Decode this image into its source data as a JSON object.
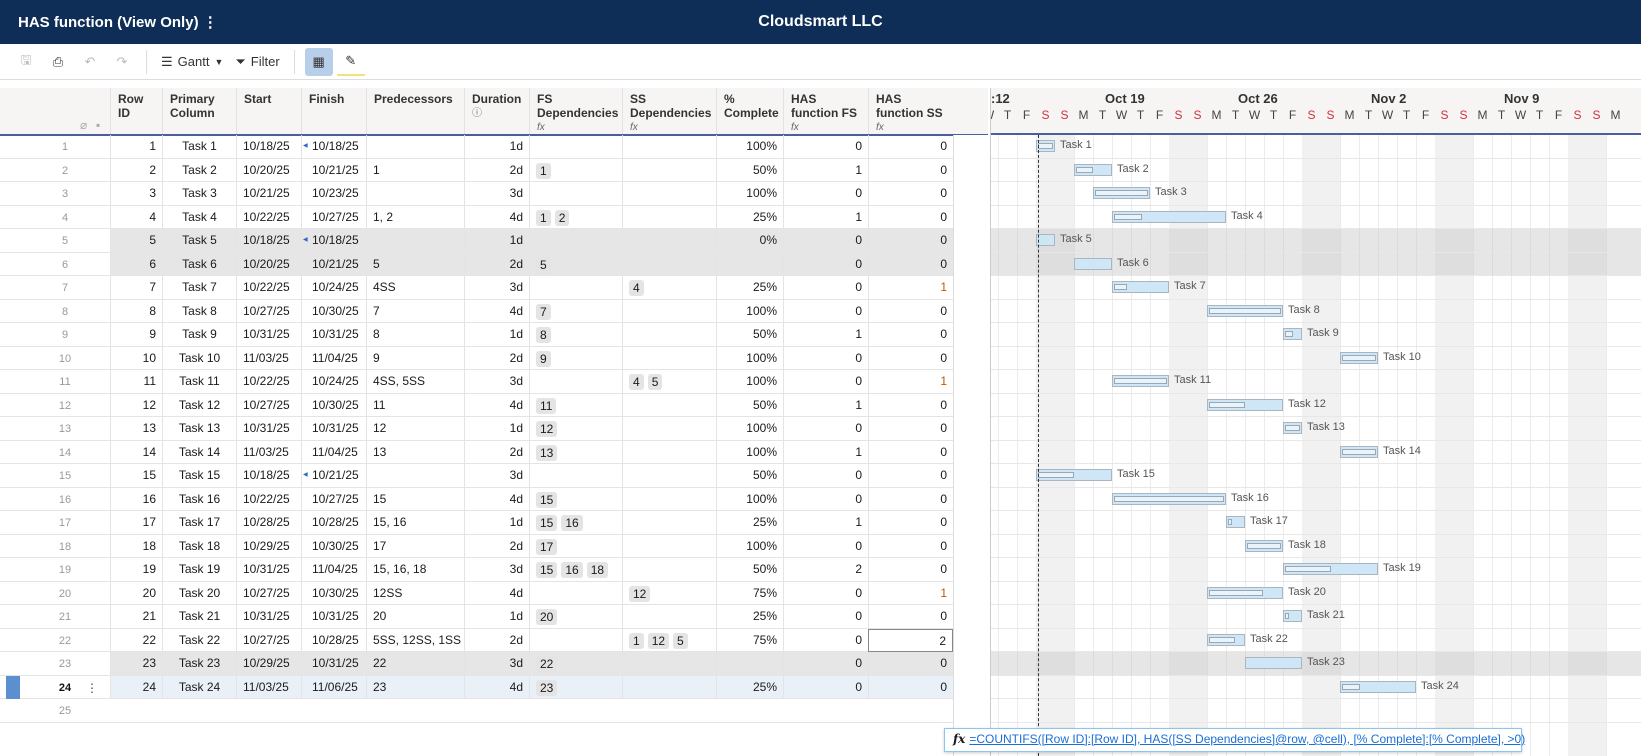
{
  "header": {
    "title": "HAS function (View Only) ⋮",
    "company": "Cloudsmart LLC"
  },
  "toolbar": {
    "view_label": "Gantt",
    "filter_label": "Filter",
    "icons": [
      "save-icon",
      "print-icon",
      "undo-icon",
      "redo-icon",
      "gantt-icon",
      "filter-icon",
      "grid-view-icon",
      "highlight-icon"
    ]
  },
  "columns": [
    "Row ID",
    "Primary Column",
    "Start",
    "Finish",
    "Predecessors",
    "Duration",
    "FS Dependencies",
    "SS Dependencies",
    "% Complete",
    "HAS function FS",
    "HAS function SS"
  ],
  "formula_icon": "fx",
  "rows": [
    {
      "n": "1",
      "id": "1",
      "name": "Task 1",
      "start": "10/18/25",
      "finish": "10/18/25",
      "pred": "",
      "dur": "1d",
      "fs": [],
      "ss": [],
      "pct": "100%",
      "hfs": "0",
      "hss": "0",
      "marker": true
    },
    {
      "n": "2",
      "id": "2",
      "name": "Task 2",
      "start": "10/20/25",
      "finish": "10/21/25",
      "pred": "1",
      "dur": "2d",
      "fs": [
        "1"
      ],
      "ss": [],
      "pct": "50%",
      "hfs": "1",
      "hss": "0"
    },
    {
      "n": "3",
      "id": "3",
      "name": "Task 3",
      "start": "10/21/25",
      "finish": "10/23/25",
      "pred": "",
      "dur": "3d",
      "fs": [],
      "ss": [],
      "pct": "100%",
      "hfs": "0",
      "hss": "0"
    },
    {
      "n": "4",
      "id": "4",
      "name": "Task 4",
      "start": "10/22/25",
      "finish": "10/27/25",
      "pred": "1, 2",
      "dur": "4d",
      "fs": [
        "1",
        "2"
      ],
      "ss": [],
      "pct": "25%",
      "hfs": "1",
      "hss": "0"
    },
    {
      "n": "5",
      "id": "5",
      "name": "Task 5",
      "start": "10/18/25",
      "finish": "10/18/25",
      "pred": "",
      "dur": "1d",
      "fs": [],
      "ss": [],
      "pct": "0%",
      "hfs": "0",
      "hss": "0",
      "gray": true,
      "marker": true
    },
    {
      "n": "6",
      "id": "6",
      "name": "Task 6",
      "start": "10/20/25",
      "finish": "10/21/25",
      "pred": "5",
      "dur": "2d",
      "fs": [
        "5"
      ],
      "ss": [],
      "pct": "",
      "hfs": "0",
      "hss": "0",
      "gray": true
    },
    {
      "n": "7",
      "id": "7",
      "name": "Task 7",
      "start": "10/22/25",
      "finish": "10/24/25",
      "pred": "4SS",
      "dur": "3d",
      "fs": [],
      "ss": [
        "4"
      ],
      "pct": "25%",
      "hfs": "0",
      "hss": "1"
    },
    {
      "n": "8",
      "id": "8",
      "name": "Task 8",
      "start": "10/27/25",
      "finish": "10/30/25",
      "pred": "7",
      "dur": "4d",
      "fs": [
        "7"
      ],
      "ss": [],
      "pct": "100%",
      "hfs": "0",
      "hss": "0"
    },
    {
      "n": "9",
      "id": "9",
      "name": "Task 9",
      "start": "10/31/25",
      "finish": "10/31/25",
      "pred": "8",
      "dur": "1d",
      "fs": [
        "8"
      ],
      "ss": [],
      "pct": "50%",
      "hfs": "1",
      "hss": "0"
    },
    {
      "n": "10",
      "id": "10",
      "name": "Task 10",
      "start": "11/03/25",
      "finish": "11/04/25",
      "pred": "9",
      "dur": "2d",
      "fs": [
        "9"
      ],
      "ss": [],
      "pct": "100%",
      "hfs": "0",
      "hss": "0"
    },
    {
      "n": "11",
      "id": "11",
      "name": "Task 11",
      "start": "10/22/25",
      "finish": "10/24/25",
      "pred": "4SS, 5SS",
      "dur": "3d",
      "fs": [],
      "ss": [
        "4",
        "5"
      ],
      "pct": "100%",
      "hfs": "0",
      "hss": "1"
    },
    {
      "n": "12",
      "id": "12",
      "name": "Task 12",
      "start": "10/27/25",
      "finish": "10/30/25",
      "pred": "11",
      "dur": "4d",
      "fs": [
        "11"
      ],
      "ss": [],
      "pct": "50%",
      "hfs": "1",
      "hss": "0"
    },
    {
      "n": "13",
      "id": "13",
      "name": "Task 13",
      "start": "10/31/25",
      "finish": "10/31/25",
      "pred": "12",
      "dur": "1d",
      "fs": [
        "12"
      ],
      "ss": [],
      "pct": "100%",
      "hfs": "0",
      "hss": "0"
    },
    {
      "n": "14",
      "id": "14",
      "name": "Task 14",
      "start": "11/03/25",
      "finish": "11/04/25",
      "pred": "13",
      "dur": "2d",
      "fs": [
        "13"
      ],
      "ss": [],
      "pct": "100%",
      "hfs": "1",
      "hss": "0"
    },
    {
      "n": "15",
      "id": "15",
      "name": "Task 15",
      "start": "10/18/25",
      "finish": "10/21/25",
      "pred": "",
      "dur": "3d",
      "fs": [],
      "ss": [],
      "pct": "50%",
      "hfs": "0",
      "hss": "0",
      "marker": true
    },
    {
      "n": "16",
      "id": "16",
      "name": "Task 16",
      "start": "10/22/25",
      "finish": "10/27/25",
      "pred": "15",
      "dur": "4d",
      "fs": [
        "15"
      ],
      "ss": [],
      "pct": "100%",
      "hfs": "0",
      "hss": "0"
    },
    {
      "n": "17",
      "id": "17",
      "name": "Task 17",
      "start": "10/28/25",
      "finish": "10/28/25",
      "pred": "15, 16",
      "dur": "1d",
      "fs": [
        "15",
        "16"
      ],
      "ss": [],
      "pct": "25%",
      "hfs": "1",
      "hss": "0"
    },
    {
      "n": "18",
      "id": "18",
      "name": "Task 18",
      "start": "10/29/25",
      "finish": "10/30/25",
      "pred": "17",
      "dur": "2d",
      "fs": [
        "17"
      ],
      "ss": [],
      "pct": "100%",
      "hfs": "0",
      "hss": "0"
    },
    {
      "n": "19",
      "id": "19",
      "name": "Task 19",
      "start": "10/31/25",
      "finish": "11/04/25",
      "pred": "15, 16, 18",
      "dur": "3d",
      "fs": [
        "15",
        "16",
        "18"
      ],
      "ss": [],
      "pct": "50%",
      "hfs": "2",
      "hss": "0"
    },
    {
      "n": "20",
      "id": "20",
      "name": "Task 20",
      "start": "10/27/25",
      "finish": "10/30/25",
      "pred": "12SS",
      "dur": "4d",
      "fs": [],
      "ss": [
        "12"
      ],
      "pct": "75%",
      "hfs": "0",
      "hss": "1"
    },
    {
      "n": "21",
      "id": "21",
      "name": "Task 21",
      "start": "10/31/25",
      "finish": "10/31/25",
      "pred": "20",
      "dur": "1d",
      "fs": [
        "20"
      ],
      "ss": [],
      "pct": "25%",
      "hfs": "0",
      "hss": "0"
    },
    {
      "n": "22",
      "id": "22",
      "name": "Task 22",
      "start": "10/27/25",
      "finish": "10/28/25",
      "pred": "5SS, 12SS, 1SS",
      "dur": "2d",
      "fs": [],
      "ss": [
        "1",
        "12",
        "5"
      ],
      "pct": "75%",
      "hfs": "0",
      "hss": "2",
      "active": true
    },
    {
      "n": "23",
      "id": "23",
      "name": "Task 23",
      "start": "10/29/25",
      "finish": "10/31/25",
      "pred": "22",
      "dur": "3d",
      "fs": [
        "22"
      ],
      "ss": [],
      "pct": "",
      "hfs": "0",
      "hss": "0",
      "gray": true
    },
    {
      "n": "24",
      "id": "24",
      "name": "Task 24",
      "start": "11/03/25",
      "finish": "11/06/25",
      "pred": "23",
      "dur": "4d",
      "fs": [
        "23"
      ],
      "ss": [],
      "pct": "25%",
      "hfs": "0",
      "hss": "0",
      "selected": true
    },
    {
      "n": "25",
      "empty": true
    }
  ],
  "gantt": {
    "weeks": [
      ":12",
      "Oct 19",
      "Oct 26",
      "Nov 2",
      "Nov 9"
    ],
    "days": [
      "W",
      "T",
      "F",
      "S",
      "S",
      "M",
      "T",
      "W",
      "T",
      "F",
      "S",
      "S",
      "M",
      "T",
      "W",
      "T",
      "F",
      "S",
      "S",
      "M",
      "T",
      "W",
      "T",
      "F",
      "S",
      "S",
      "M",
      "T",
      "W",
      "T",
      "F",
      "S",
      "S",
      "M"
    ],
    "bar_fill": "#cfe6f6"
  },
  "tooltip": {
    "formula": "=COUNTIFS([Row ID]:[Row ID], HAS([SS Dependencies]@row, @cell), [% Complete]:[% Complete], >0)"
  }
}
